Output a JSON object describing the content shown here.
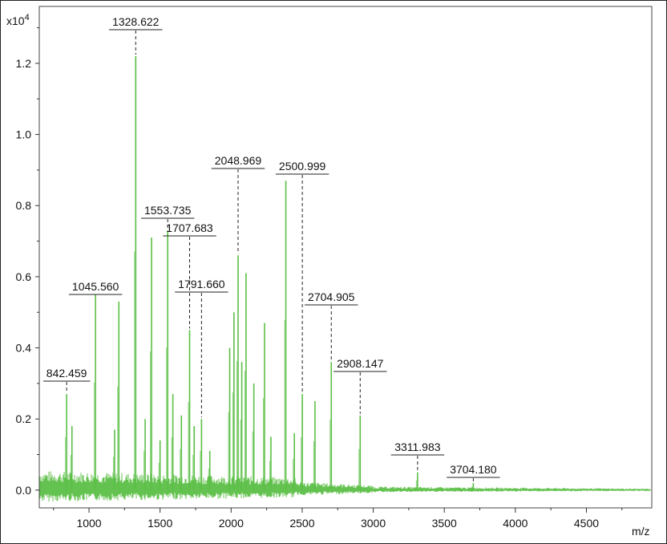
{
  "chart_data": {
    "type": "line",
    "title": "",
    "xlabel": "m/z",
    "ylabel": "",
    "y_scale_label": "x10",
    "y_scale_exponent": "4",
    "xlim": [
      650,
      4960
    ],
    "ylim": [
      -0.05,
      1.36
    ],
    "x_ticks": [
      1000,
      1500,
      2000,
      2500,
      3000,
      3500,
      4000,
      4500
    ],
    "x_tick_labels": [
      "1000",
      "1500",
      "2000",
      "2500",
      "3000",
      "3500",
      "4000",
      "4500"
    ],
    "y_ticks": [
      0.0,
      0.2,
      0.4,
      0.6,
      0.8,
      1.0,
      1.2
    ],
    "y_tick_labels": [
      "0.0",
      "0.2",
      "0.4",
      "0.6",
      "0.8",
      "1.0",
      "1.2"
    ],
    "line_color": "#5cbf47",
    "series": [
      {
        "peaks": [
          {
            "x": 842.459,
            "y": 0.27,
            "label": "842.459"
          },
          {
            "x": 880,
            "y": 0.18
          },
          {
            "x": 1045.56,
            "y": 0.55,
            "label": "1045.560"
          },
          {
            "x": 1180,
            "y": 0.17
          },
          {
            "x": 1210,
            "y": 0.53
          },
          {
            "x": 1328.622,
            "y": 1.22,
            "label": "1328.622"
          },
          {
            "x": 1395,
            "y": 0.2
          },
          {
            "x": 1440,
            "y": 0.71
          },
          {
            "x": 1500,
            "y": 0.14
          },
          {
            "x": 1553.735,
            "y": 0.73,
            "label": "1553.735"
          },
          {
            "x": 1590,
            "y": 0.27
          },
          {
            "x": 1650,
            "y": 0.21
          },
          {
            "x": 1707.683,
            "y": 0.45,
            "label": "1707.683"
          },
          {
            "x": 1740,
            "y": 0.18
          },
          {
            "x": 1791.66,
            "y": 0.2,
            "label": "1791.660"
          },
          {
            "x": 1850,
            "y": 0.11
          },
          {
            "x": 1990,
            "y": 0.4
          },
          {
            "x": 2020,
            "y": 0.5
          },
          {
            "x": 2048.969,
            "y": 0.66,
            "label": "2048.969"
          },
          {
            "x": 2075,
            "y": 0.36
          },
          {
            "x": 2105,
            "y": 0.61
          },
          {
            "x": 2160,
            "y": 0.3
          },
          {
            "x": 2235,
            "y": 0.47
          },
          {
            "x": 2280,
            "y": 0.15
          },
          {
            "x": 2385,
            "y": 0.87
          },
          {
            "x": 2445,
            "y": 0.16
          },
          {
            "x": 2500.999,
            "y": 0.27,
            "label": "2500.999"
          },
          {
            "x": 2590,
            "y": 0.25
          },
          {
            "x": 2704.905,
            "y": 0.36,
            "label": "2704.905"
          },
          {
            "x": 2908.147,
            "y": 0.21,
            "label": "2908.147"
          },
          {
            "x": 3311.983,
            "y": 0.05,
            "label": "3311.983"
          },
          {
            "x": 3704.18,
            "y": 0.02,
            "label": "3704.180"
          }
        ]
      }
    ]
  }
}
